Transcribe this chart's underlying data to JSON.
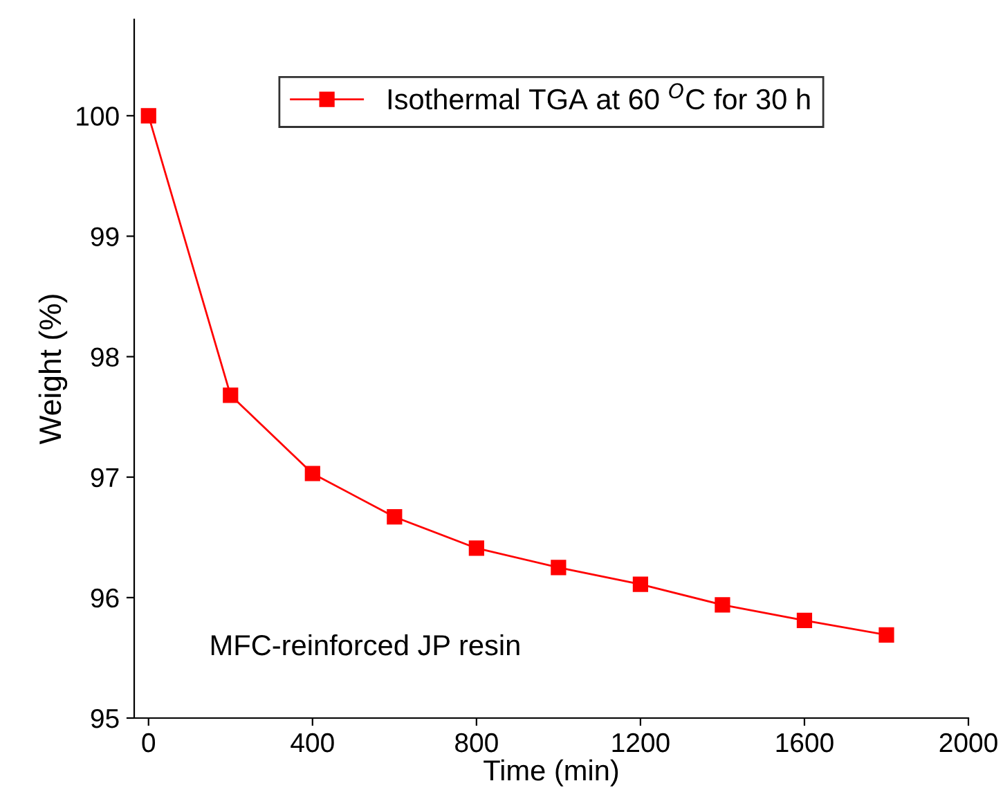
{
  "chart_data": {
    "type": "line",
    "xlabel": "Time (min)",
    "ylabel": "Weight (%)",
    "x": [
      0,
      200,
      400,
      600,
      800,
      1000,
      1200,
      1400,
      1600,
      1800
    ],
    "series": [
      {
        "name": "Isothermal TGA at 60 $^{O}$C for 30 h",
        "color": "#ff0000",
        "values": [
          100.0,
          97.68,
          97.03,
          96.67,
          96.41,
          96.25,
          96.11,
          95.94,
          95.81,
          95.69
        ]
      }
    ],
    "xlim": [
      -35,
      2000
    ],
    "ylim": [
      95,
      100.8
    ],
    "xticks": [
      0,
      400,
      800,
      1200,
      1600,
      2000
    ],
    "yticks": [
      95,
      96,
      97,
      98,
      99,
      100
    ],
    "annotations": [
      "MFC-reinforced JP resin"
    ],
    "marker": "square",
    "line_style": "solid",
    "legend": "top",
    "grid": false
  }
}
